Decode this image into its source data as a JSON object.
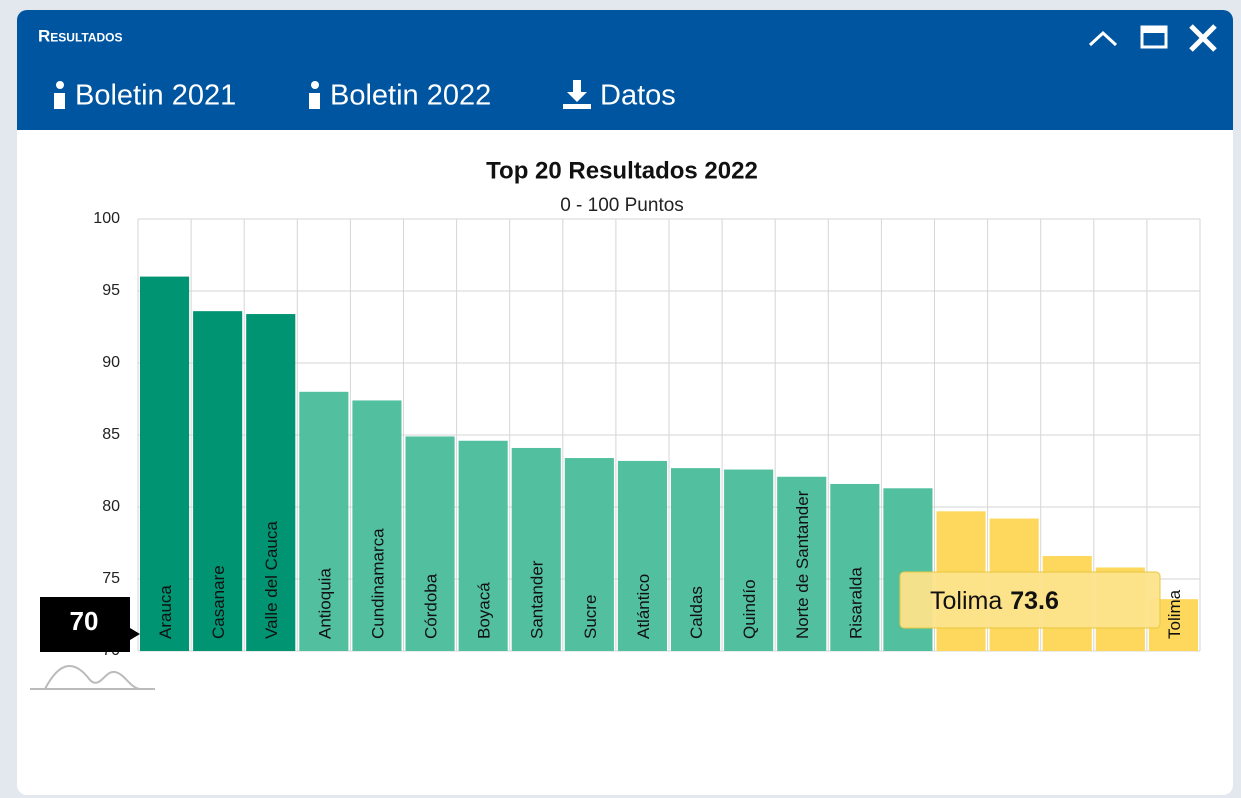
{
  "window": {
    "title": "Resultados",
    "buttons": [
      "Boletin 2021",
      "Boletin 2022",
      "Datos"
    ]
  },
  "slider": {
    "value": 70
  },
  "chart_data": {
    "type": "bar",
    "title": "Top 20 Resultados 2022",
    "subtitle": "0 - 100 Puntos",
    "categories": [
      "Arauca",
      "Casanare",
      "Valle del Cauca",
      "Antioquia",
      "Cundinamarca",
      "Córdoba",
      "Boyacá",
      "Santander",
      "Sucre",
      "Atlántico",
      "Caldas",
      "Quindío",
      "Norte de Santander",
      "Risaralda",
      null,
      null,
      null,
      null,
      null,
      "Tolima"
    ],
    "values": [
      96.0,
      93.6,
      93.4,
      88.0,
      87.4,
      84.9,
      84.6,
      84.1,
      83.4,
      83.2,
      82.7,
      82.6,
      82.1,
      81.6,
      81.3,
      79.7,
      79.2,
      76.6,
      75.8,
      73.6
    ],
    "colors": [
      "#009473",
      "#009473",
      "#009473",
      "#52bf9f",
      "#52bf9f",
      "#52bf9f",
      "#52bf9f",
      "#52bf9f",
      "#52bf9f",
      "#52bf9f",
      "#52bf9f",
      "#52bf9f",
      "#52bf9f",
      "#52bf9f",
      "#52bf9f",
      "#fdd85d",
      "#fdd85d",
      "#fdd85d",
      "#fdd85d",
      "#fdd85d"
    ],
    "ylim": [
      70,
      100
    ],
    "yticks": [
      70,
      75,
      80,
      85,
      90,
      95,
      100
    ],
    "grid": true,
    "tooltip_index": 19
  }
}
